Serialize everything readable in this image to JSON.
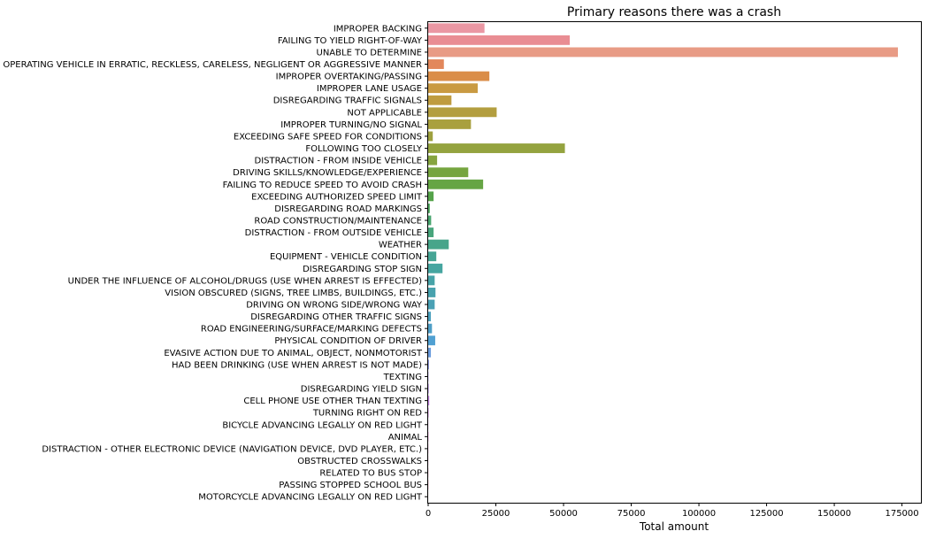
{
  "chart_data": {
    "type": "bar",
    "orientation": "horizontal",
    "title": "Primary reasons there was a crash",
    "xlabel": "Total amount",
    "ylabel": "",
    "xlim": [
      0,
      182000
    ],
    "xticks": [
      0,
      25000,
      50000,
      75000,
      100000,
      125000,
      150000,
      175000
    ],
    "grid": false,
    "categories": [
      "IMPROPER BACKING",
      "FAILING TO YIELD RIGHT-OF-WAY",
      "UNABLE TO DETERMINE",
      "OPERATING VEHICLE IN ERRATIC, RECKLESS, CARELESS, NEGLIGENT OR AGGRESSIVE MANNER",
      "IMPROPER OVERTAKING/PASSING",
      "IMPROPER LANE USAGE",
      "DISREGARDING TRAFFIC SIGNALS",
      "NOT APPLICABLE",
      "IMPROPER TURNING/NO SIGNAL",
      "EXCEEDING SAFE SPEED FOR CONDITIONS",
      "FOLLOWING TOO CLOSELY",
      "DISTRACTION - FROM INSIDE VEHICLE",
      "DRIVING SKILLS/KNOWLEDGE/EXPERIENCE",
      "FAILING TO REDUCE SPEED TO AVOID CRASH",
      "EXCEEDING AUTHORIZED SPEED LIMIT",
      "DISREGARDING ROAD MARKINGS",
      "ROAD CONSTRUCTION/MAINTENANCE",
      "DISTRACTION - FROM OUTSIDE VEHICLE",
      "WEATHER",
      "EQUIPMENT - VEHICLE CONDITION",
      "DISREGARDING STOP SIGN",
      "UNDER THE INFLUENCE OF ALCOHOL/DRUGS (USE WHEN ARREST IS EFFECTED)",
      "VISION OBSCURED (SIGNS, TREE LIMBS, BUILDINGS, ETC.)",
      "DRIVING ON WRONG SIDE/WRONG WAY",
      "DISREGARDING OTHER TRAFFIC SIGNS",
      "ROAD ENGINEERING/SURFACE/MARKING DEFECTS",
      "PHYSICAL CONDITION OF DRIVER",
      "EVASIVE ACTION DUE TO ANIMAL, OBJECT, NONMOTORIST",
      "HAD BEEN DRINKING (USE WHEN ARREST IS NOT MADE)",
      "TEXTING",
      "DISREGARDING YIELD SIGN",
      "CELL PHONE USE OTHER THAN TEXTING",
      "TURNING RIGHT ON RED",
      "BICYCLE ADVANCING LEGALLY ON RED LIGHT",
      "ANIMAL",
      "DISTRACTION - OTHER ELECTRONIC DEVICE (NAVIGATION DEVICE, DVD PLAYER, ETC.)",
      "OBSTRUCTED CROSSWALKS",
      "RELATED TO BUS STOP",
      "PASSING STOPPED SCHOOL BUS",
      "MOTORCYCLE ADVANCING LEGALLY ON RED LIGHT"
    ],
    "values": [
      20800,
      52300,
      173500,
      5800,
      22600,
      18300,
      8600,
      25300,
      15800,
      1700,
      50500,
      3300,
      14800,
      20300,
      2000,
      600,
      1100,
      2000,
      7600,
      3000,
      5300,
      2400,
      2700,
      2400,
      1000,
      1400,
      2600,
      1000,
      300,
      100,
      200,
      400,
      150,
      40,
      100,
      60,
      40,
      60,
      80,
      10
    ],
    "colors": [
      "#ea97a3",
      "#e98d93",
      "#e89b85",
      "#e2875b",
      "#da8d48",
      "#c99a42",
      "#bf9c40",
      "#b39e3f",
      "#a9a03f",
      "#9ea13f",
      "#94a33f",
      "#86a43f",
      "#76a53f",
      "#66a544",
      "#55a34a",
      "#4aa55c",
      "#48a56e",
      "#48a57c",
      "#47a58a",
      "#46a595",
      "#46a5a0",
      "#47a3a8",
      "#48a2ae",
      "#4aa1b5",
      "#4ba0bd",
      "#4e9ec6",
      "#50a0d2",
      "#6a9bdc",
      "#8a95e0",
      "#a18fe2",
      "#b18ae3",
      "#c383e3",
      "#d27de1",
      "#dd7bd7",
      "#e47bcb",
      "#e77ec0",
      "#e883b5",
      "#e887ab",
      "#e98ba2",
      "#e98d9b"
    ]
  }
}
